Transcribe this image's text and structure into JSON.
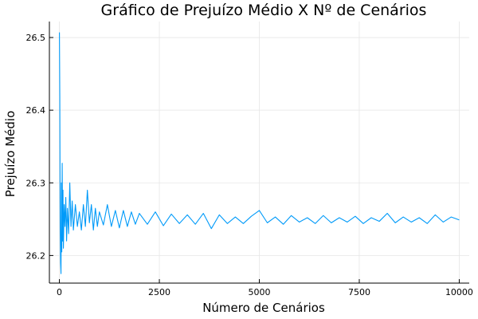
{
  "chart_data": {
    "type": "line",
    "title": "Gráfico de Prejuízo Médio X Nº de Cenários",
    "xlabel": "Número de Cenários",
    "ylabel": "Prejuízo Médio",
    "xlim": [
      -250,
      10250
    ],
    "ylim": [
      26.162,
      26.522
    ],
    "xticks": [
      0,
      2500,
      5000,
      7500,
      10000
    ],
    "xtick_labels": [
      "0",
      "2500",
      "5000",
      "7500",
      "10000"
    ],
    "yticks": [
      26.2,
      26.3,
      26.4,
      26.5
    ],
    "ytick_labels": [
      "26.2",
      "26.3",
      "26.4",
      "26.5"
    ],
    "grid": true,
    "legend": "none",
    "series": [
      {
        "color": "#009af9",
        "x": [
          1,
          10,
          20,
          30,
          40,
          50,
          60,
          70,
          80,
          90,
          100,
          120,
          140,
          160,
          180,
          200,
          230,
          260,
          290,
          320,
          350,
          400,
          450,
          500,
          550,
          600,
          650,
          700,
          750,
          800,
          850,
          900,
          950,
          1000,
          1100,
          1200,
          1300,
          1400,
          1500,
          1600,
          1700,
          1800,
          1900,
          2000,
          2200,
          2400,
          2600,
          2800,
          3000,
          3200,
          3400,
          3600,
          3800,
          4000,
          4200,
          4400,
          4600,
          4800,
          5000,
          5200,
          5400,
          5600,
          5800,
          6000,
          6200,
          6400,
          6600,
          6800,
          7000,
          7200,
          7400,
          7600,
          7800,
          8000,
          8200,
          8400,
          8600,
          8800,
          9000,
          9200,
          9400,
          9600,
          9800,
          10000
        ],
        "y": [
          26.507,
          26.42,
          26.24,
          26.19,
          26.175,
          26.3,
          26.205,
          26.327,
          26.22,
          26.29,
          26.21,
          26.27,
          26.24,
          26.28,
          26.22,
          26.265,
          26.23,
          26.3,
          26.24,
          26.275,
          26.235,
          26.27,
          26.24,
          26.26,
          26.235,
          26.27,
          26.24,
          26.29,
          26.245,
          26.27,
          26.235,
          26.265,
          26.24,
          26.26,
          26.242,
          26.27,
          26.24,
          26.262,
          26.238,
          26.262,
          26.24,
          26.26,
          26.243,
          26.258,
          26.243,
          26.26,
          26.241,
          26.257,
          26.244,
          26.256,
          26.243,
          26.258,
          26.237,
          26.256,
          26.244,
          26.253,
          26.244,
          26.254,
          26.262,
          26.245,
          26.253,
          26.243,
          26.255,
          26.246,
          26.252,
          26.244,
          26.255,
          26.245,
          26.252,
          26.246,
          26.254,
          26.244,
          26.252,
          26.247,
          26.258,
          26.245,
          26.253,
          26.246,
          26.252,
          26.244,
          26.256,
          26.246,
          26.253,
          26.249
        ]
      }
    ]
  }
}
